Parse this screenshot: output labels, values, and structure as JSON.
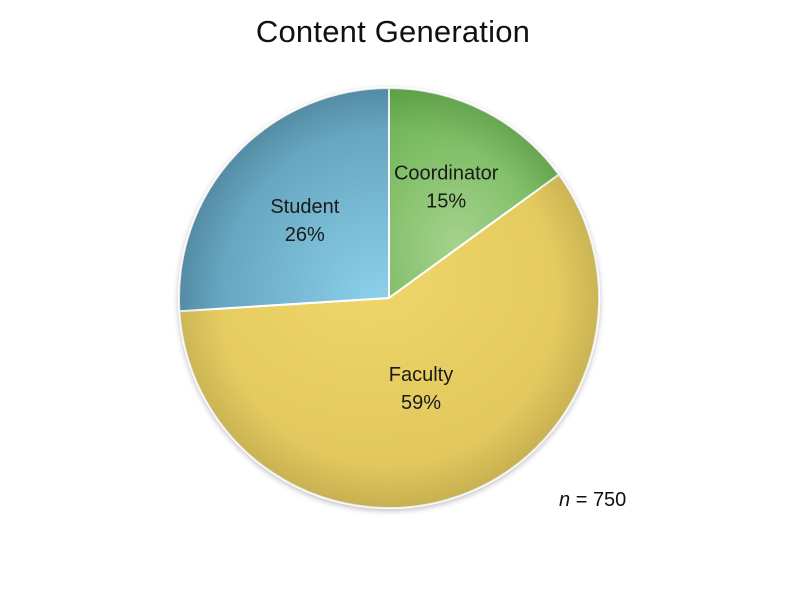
{
  "chart_data": {
    "type": "pie",
    "title": "Content Generation",
    "slices": [
      {
        "label": "Coordinator",
        "value": 15,
        "display": "15%",
        "color": "#7fbf63"
      },
      {
        "label": "Faculty",
        "value": 59,
        "display": "59%",
        "color": "#e7cd5f"
      },
      {
        "label": "Student",
        "value": 26,
        "display": "26%",
        "color": "#6aaecb"
      }
    ],
    "start_angle_deg": 0,
    "direction": "clockwise",
    "annotation": {
      "symbol": "n",
      "equals": "=",
      "value": "750"
    }
  }
}
